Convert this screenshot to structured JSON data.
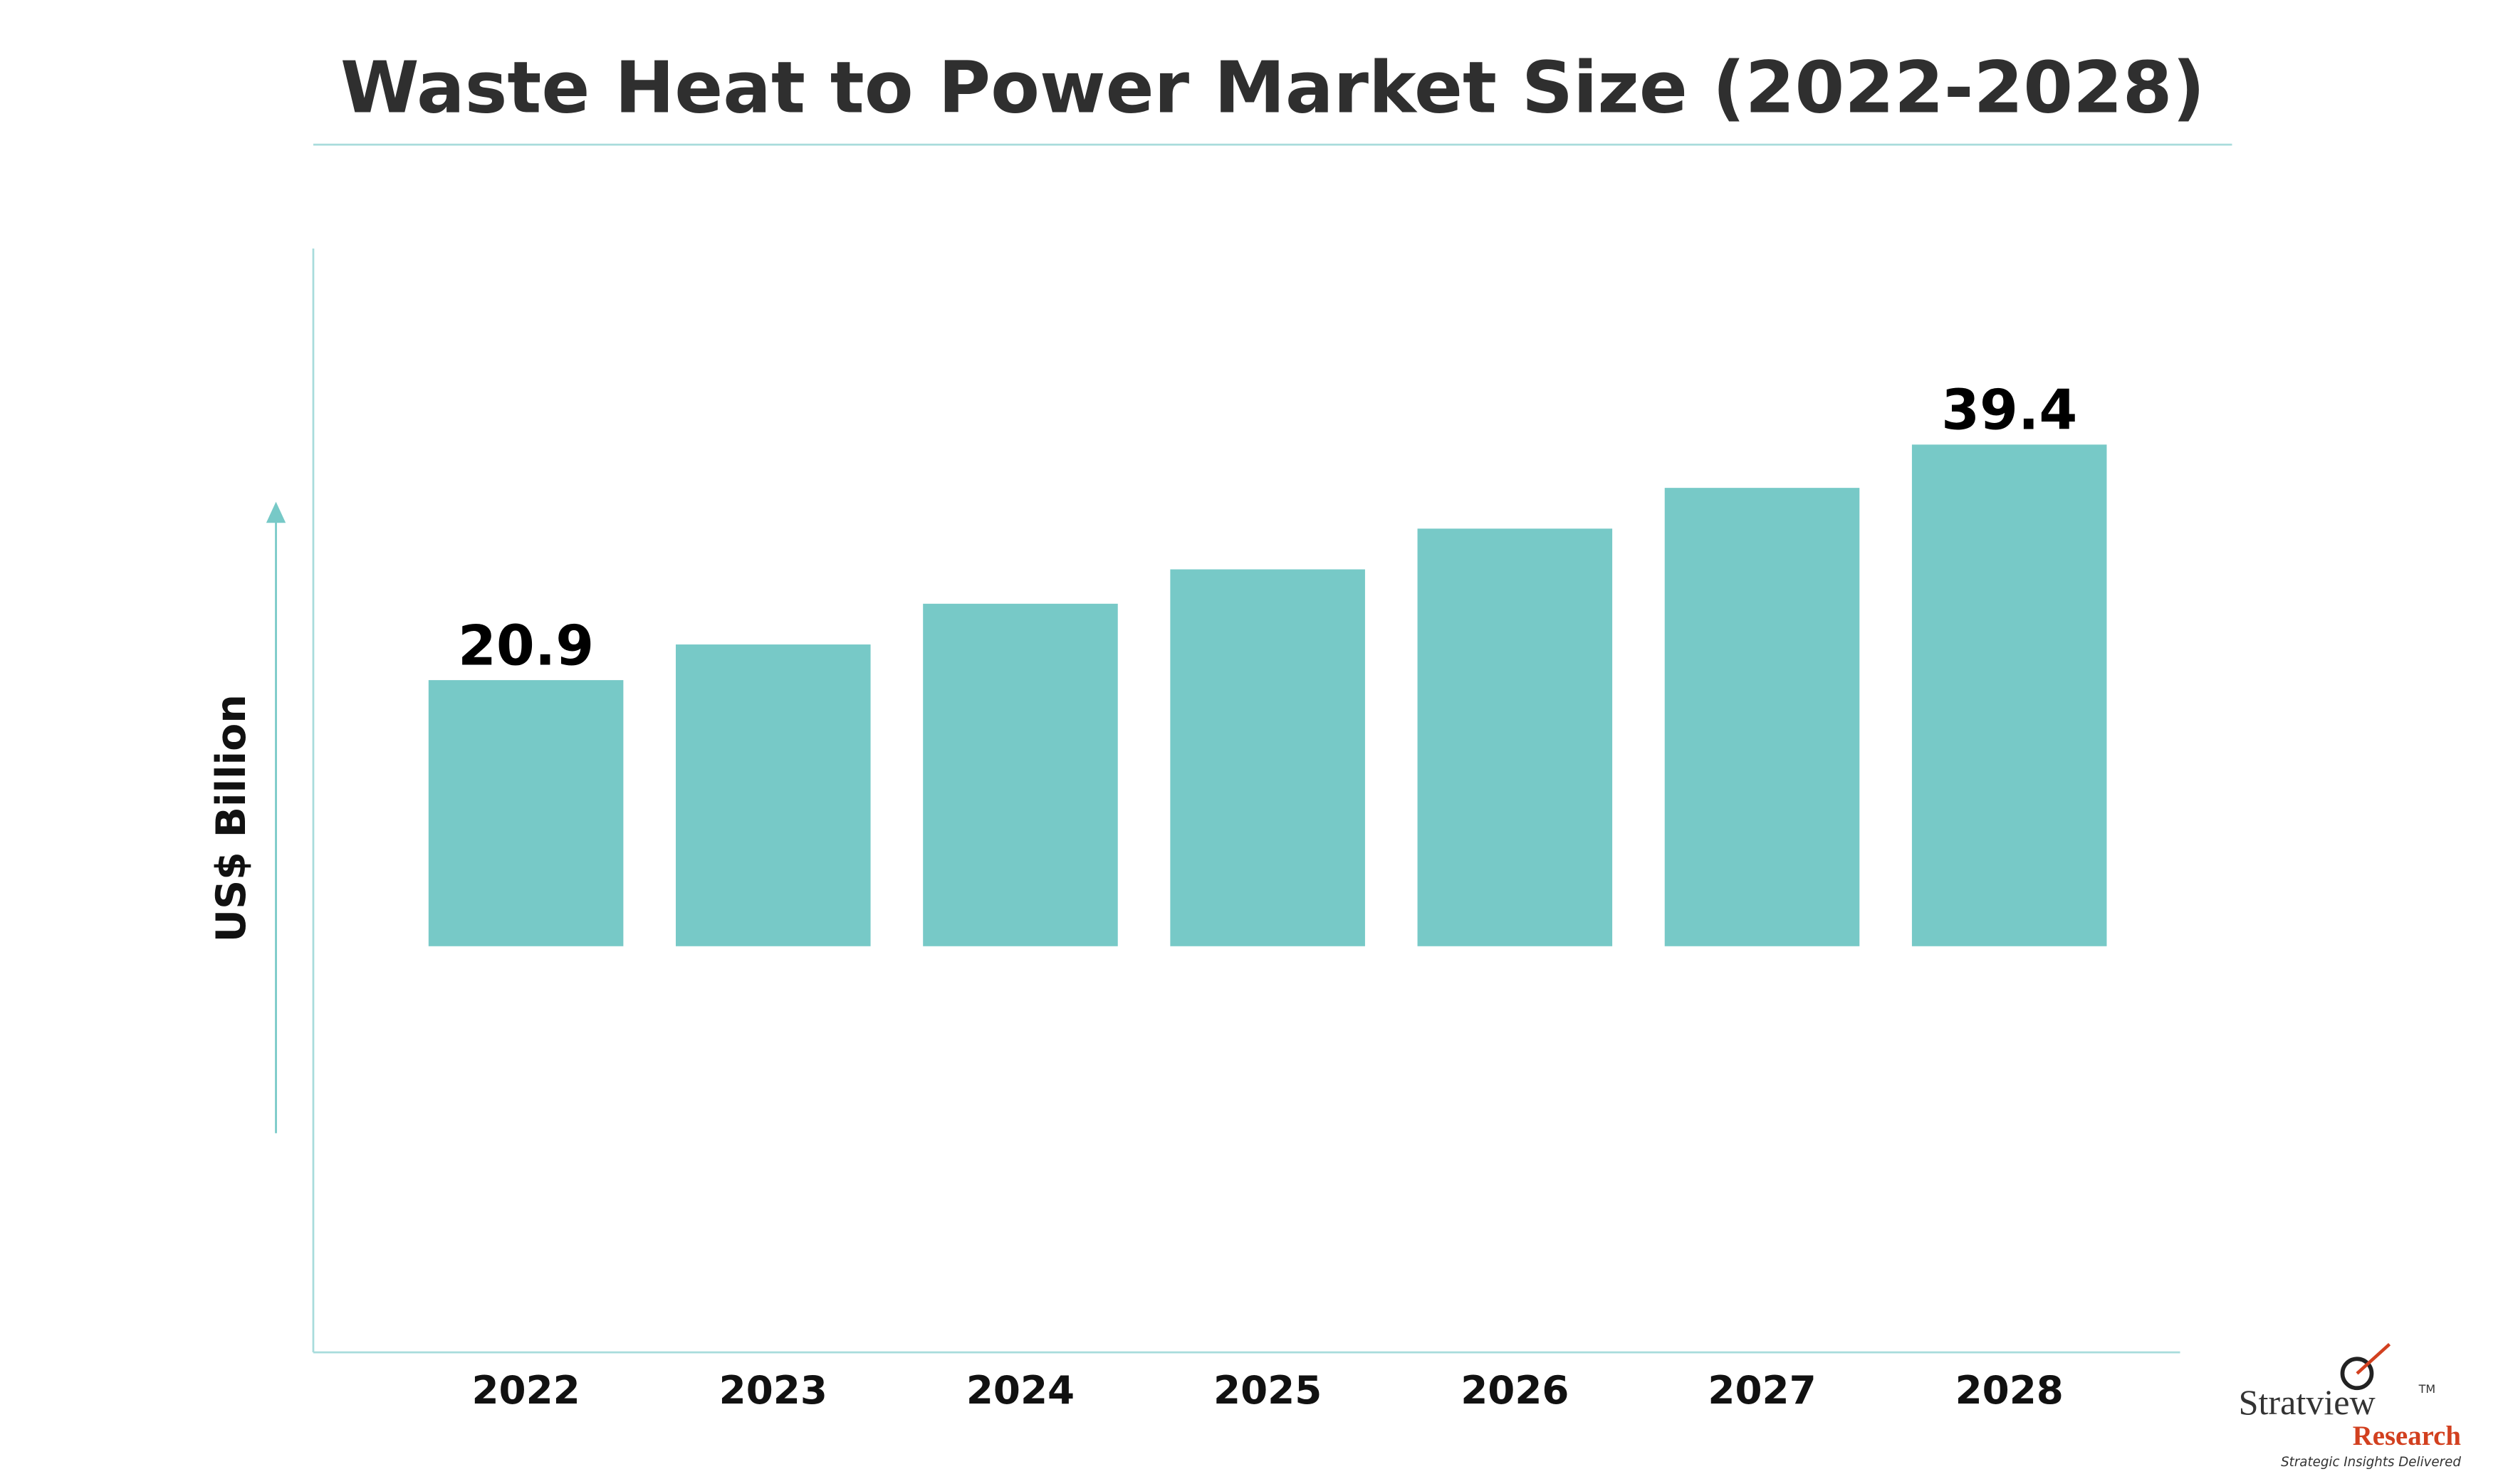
{
  "chart_data": {
    "type": "bar",
    "title": "Waste Heat to Power Market Size (2022-2028)",
    "ylabel": "US$ Billion",
    "categories": [
      "2022",
      "2023",
      "2024",
      "2025",
      "2026",
      "2027",
      "2028"
    ],
    "values": [
      20.9,
      23.7,
      26.9,
      29.6,
      32.8,
      36.0,
      39.4
    ],
    "value_labels": [
      "20.9",
      null,
      null,
      null,
      null,
      null,
      "39.4"
    ],
    "color": "#77c9c7",
    "ylim": [
      -31.9,
      54.8
    ]
  },
  "logo": {
    "name": "Stratview",
    "trademark": "TM",
    "sub": "Research",
    "tagline": "Strategic Insights Delivered"
  }
}
